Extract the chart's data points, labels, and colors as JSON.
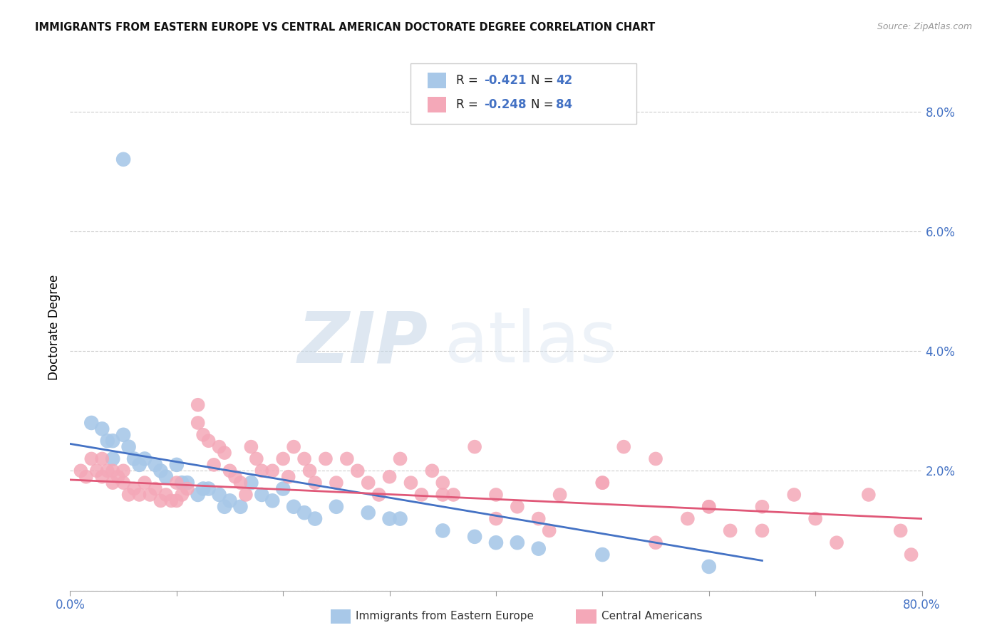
{
  "title": "IMMIGRANTS FROM EASTERN EUROPE VS CENTRAL AMERICAN DOCTORATE DEGREE CORRELATION CHART",
  "source": "Source: ZipAtlas.com",
  "ylabel": "Doctorate Degree",
  "xlim": [
    0.0,
    0.8
  ],
  "ylim": [
    0.0,
    0.088
  ],
  "xticks": [
    0.0,
    0.1,
    0.2,
    0.3,
    0.4,
    0.5,
    0.6,
    0.7,
    0.8
  ],
  "xticklabels": [
    "0.0%",
    "",
    "",
    "",
    "",
    "",
    "",
    "",
    "80.0%"
  ],
  "yticks": [
    0.0,
    0.02,
    0.04,
    0.06,
    0.08
  ],
  "yticklabels": [
    "",
    "2.0%",
    "4.0%",
    "6.0%",
    "8.0%"
  ],
  "legend_blue_r": "-0.421",
  "legend_blue_n": "42",
  "legend_pink_r": "-0.248",
  "legend_pink_n": "84",
  "blue_color": "#a8c8e8",
  "pink_color": "#f4a8b8",
  "blue_line_color": "#4472c4",
  "pink_line_color": "#e05878",
  "watermark_zip": "ZIP",
  "watermark_atlas": "atlas",
  "blue_scatter_x": [
    0.05,
    0.02,
    0.03,
    0.035,
    0.04,
    0.04,
    0.05,
    0.055,
    0.06,
    0.065,
    0.07,
    0.08,
    0.085,
    0.09,
    0.1,
    0.105,
    0.11,
    0.12,
    0.125,
    0.13,
    0.14,
    0.145,
    0.15,
    0.16,
    0.17,
    0.18,
    0.19,
    0.2,
    0.21,
    0.22,
    0.23,
    0.25,
    0.28,
    0.3,
    0.31,
    0.35,
    0.38,
    0.4,
    0.42,
    0.44,
    0.5,
    0.6
  ],
  "blue_scatter_y": [
    0.072,
    0.028,
    0.027,
    0.025,
    0.025,
    0.022,
    0.026,
    0.024,
    0.022,
    0.021,
    0.022,
    0.021,
    0.02,
    0.019,
    0.021,
    0.018,
    0.018,
    0.016,
    0.017,
    0.017,
    0.016,
    0.014,
    0.015,
    0.014,
    0.018,
    0.016,
    0.015,
    0.017,
    0.014,
    0.013,
    0.012,
    0.014,
    0.013,
    0.012,
    0.012,
    0.01,
    0.009,
    0.008,
    0.008,
    0.007,
    0.006,
    0.004
  ],
  "pink_scatter_x": [
    0.01,
    0.015,
    0.02,
    0.025,
    0.03,
    0.03,
    0.035,
    0.04,
    0.04,
    0.045,
    0.05,
    0.05,
    0.055,
    0.06,
    0.065,
    0.07,
    0.075,
    0.08,
    0.085,
    0.09,
    0.095,
    0.1,
    0.1,
    0.105,
    0.11,
    0.12,
    0.12,
    0.125,
    0.13,
    0.135,
    0.14,
    0.145,
    0.15,
    0.155,
    0.16,
    0.165,
    0.17,
    0.175,
    0.18,
    0.19,
    0.2,
    0.205,
    0.21,
    0.22,
    0.225,
    0.23,
    0.24,
    0.25,
    0.26,
    0.27,
    0.28,
    0.29,
    0.3,
    0.31,
    0.32,
    0.33,
    0.34,
    0.35,
    0.36,
    0.38,
    0.4,
    0.42,
    0.44,
    0.46,
    0.5,
    0.52,
    0.55,
    0.58,
    0.6,
    0.62,
    0.65,
    0.68,
    0.7,
    0.72,
    0.75,
    0.78,
    0.79,
    0.35,
    0.4,
    0.45,
    0.5,
    0.55,
    0.6,
    0.65
  ],
  "pink_scatter_y": [
    0.02,
    0.019,
    0.022,
    0.02,
    0.022,
    0.019,
    0.02,
    0.02,
    0.018,
    0.019,
    0.02,
    0.018,
    0.016,
    0.017,
    0.016,
    0.018,
    0.016,
    0.017,
    0.015,
    0.016,
    0.015,
    0.015,
    0.018,
    0.016,
    0.017,
    0.031,
    0.028,
    0.026,
    0.025,
    0.021,
    0.024,
    0.023,
    0.02,
    0.019,
    0.018,
    0.016,
    0.024,
    0.022,
    0.02,
    0.02,
    0.022,
    0.019,
    0.024,
    0.022,
    0.02,
    0.018,
    0.022,
    0.018,
    0.022,
    0.02,
    0.018,
    0.016,
    0.019,
    0.022,
    0.018,
    0.016,
    0.02,
    0.018,
    0.016,
    0.024,
    0.016,
    0.014,
    0.012,
    0.016,
    0.018,
    0.024,
    0.022,
    0.012,
    0.014,
    0.01,
    0.014,
    0.016,
    0.012,
    0.008,
    0.016,
    0.01,
    0.006,
    0.016,
    0.012,
    0.01,
    0.018,
    0.008,
    0.014,
    0.01
  ]
}
